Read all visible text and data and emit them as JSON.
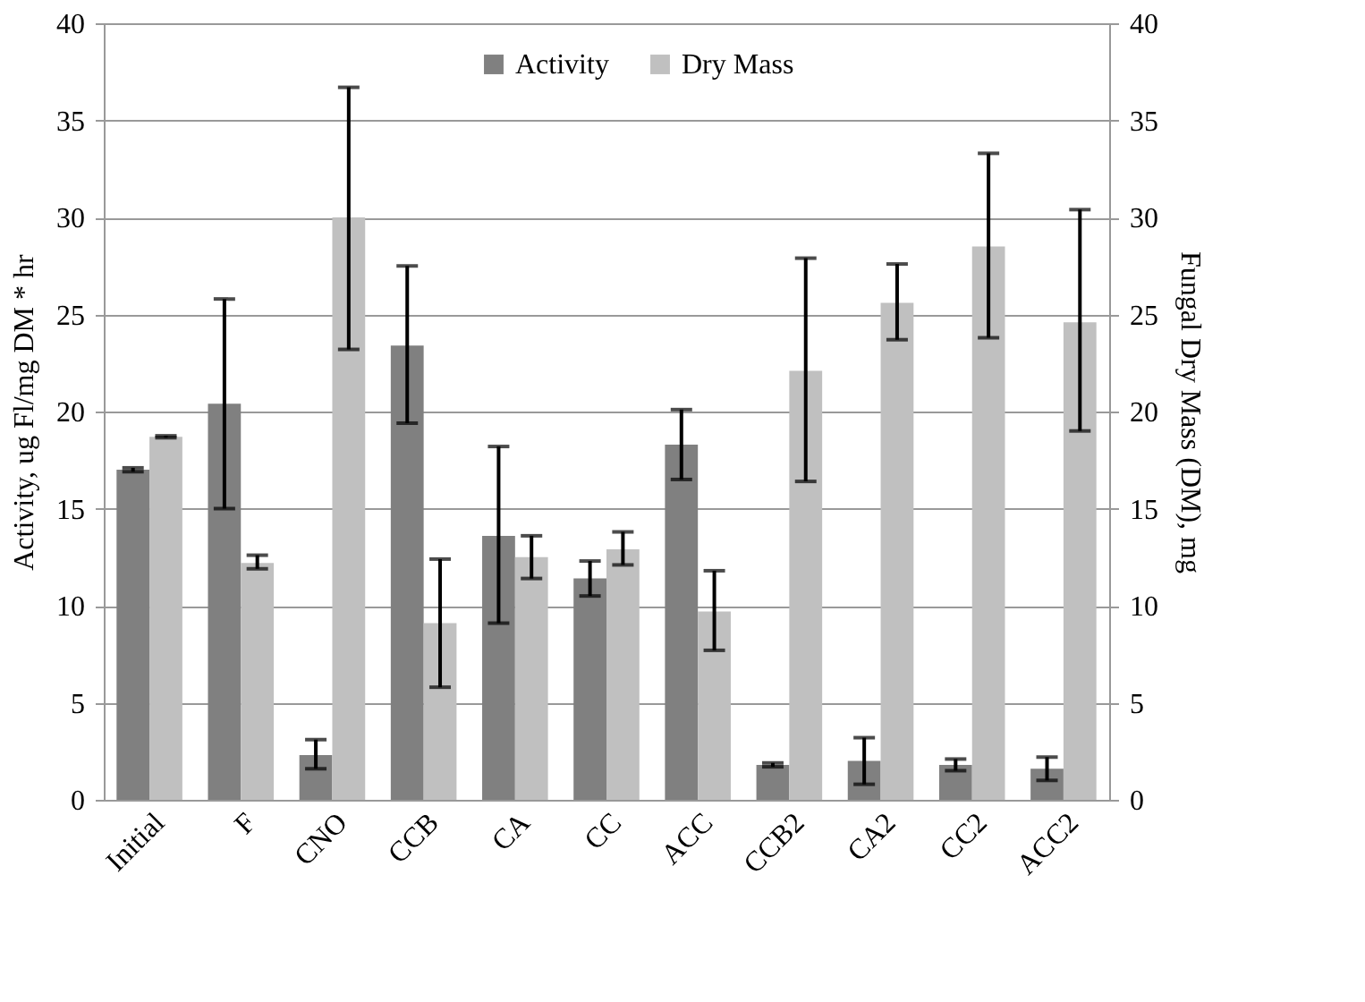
{
  "chart_data": {
    "type": "bar",
    "ylabel": "Activity, ug Fl/mg DM * hr",
    "y2label": "Fungal Dry Mass (DM), mg",
    "categories": [
      "Initial",
      "F",
      "CNO",
      "CCB",
      "CA",
      "CC",
      "ACC",
      "CCB2",
      "CA2",
      "CC2",
      "ACC2"
    ],
    "series": [
      {
        "name": "Activity",
        "color": "#808080",
        "values": [
          17.0,
          20.4,
          2.3,
          23.4,
          13.6,
          11.4,
          18.3,
          1.8,
          2.0,
          1.8,
          1.6
        ],
        "errors": [
          0.1,
          [
            15.0,
            25.8
          ],
          [
            1.6,
            3.1
          ],
          [
            19.4,
            27.5
          ],
          [
            9.1,
            18.2
          ],
          [
            10.5,
            12.3
          ],
          [
            16.5,
            20.1
          ],
          [
            1.7,
            1.9
          ],
          [
            0.8,
            3.2
          ],
          [
            1.5,
            2.1
          ],
          [
            1.0,
            2.2
          ]
        ]
      },
      {
        "name": "Dry Mass",
        "color": "#c0c0c0",
        "axis": "y2",
        "values": [
          18.7,
          12.2,
          30.0,
          9.1,
          12.5,
          12.9,
          9.7,
          22.1,
          25.6,
          28.5,
          24.6
        ],
        "errors": [
          0.05,
          [
            11.9,
            12.6
          ],
          [
            23.2,
            36.7
          ],
          [
            5.8,
            12.4
          ],
          [
            11.4,
            13.6
          ],
          [
            12.1,
            13.8
          ],
          [
            7.7,
            11.8
          ],
          [
            16.4,
            27.9
          ],
          [
            23.7,
            27.6
          ],
          [
            23.8,
            33.3
          ],
          [
            19.0,
            30.4
          ]
        ]
      }
    ],
    "ylim": [
      0,
      40
    ],
    "yticks": [
      0,
      5,
      10,
      15,
      20,
      25,
      30,
      35,
      40
    ],
    "y2lim": [
      0,
      40
    ],
    "y2ticks": [
      0,
      5,
      10,
      15,
      20,
      25,
      30,
      35,
      40
    ],
    "grid": "y",
    "legend": "top"
  }
}
